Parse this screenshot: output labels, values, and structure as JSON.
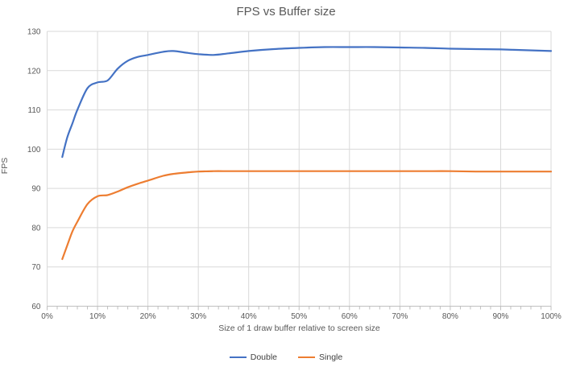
{
  "chart": {
    "title": "FPS vs Buffer size",
    "colors": {
      "double": "#4472C4",
      "single": "#ED7D31",
      "gridline": "#D9D9D9",
      "axis_line": "#BFBFBF",
      "text": "#595959"
    }
  },
  "chart_data": {
    "type": "line",
    "title": "FPS vs Buffer size",
    "xlabel": "Size of 1 draw buffer relative to screen size",
    "ylabel": "FPS",
    "xlim": [
      0,
      100
    ],
    "ylim": [
      60,
      130
    ],
    "grid": true,
    "legend_position": "bottom",
    "x_tick_labels": [
      "0%",
      "10%",
      "20%",
      "30%",
      "40%",
      "50%",
      "60%",
      "70%",
      "80%",
      "90%",
      "100%"
    ],
    "x_ticks": [
      0,
      10,
      20,
      30,
      40,
      50,
      60,
      70,
      80,
      90,
      100
    ],
    "x_minor_tick_step": 2,
    "y_ticks": [
      60,
      70,
      80,
      90,
      100,
      110,
      120,
      130
    ],
    "x": [
      3,
      4,
      5,
      6,
      8,
      10,
      12,
      14,
      16,
      18,
      20,
      23,
      25,
      28,
      30,
      33,
      36,
      40,
      45,
      50,
      55,
      60,
      65,
      70,
      75,
      80,
      85,
      90,
      95,
      100
    ],
    "series": [
      {
        "name": "Double",
        "color": "#4472C4",
        "values": [
          98,
          103,
          106.5,
          110,
          115.5,
          117,
          117.5,
          120.5,
          122.5,
          123.5,
          124,
          124.8,
          125,
          124.5,
          124.2,
          124,
          124.4,
          125,
          125.5,
          125.8,
          126,
          126,
          126,
          125.9,
          125.8,
          125.6,
          125.5,
          125.4,
          125.2,
          125
        ]
      },
      {
        "name": "Single",
        "color": "#ED7D31",
        "values": [
          72,
          75.5,
          79,
          81.5,
          86,
          88,
          88.3,
          89.2,
          90.3,
          91.2,
          92,
          93.2,
          93.7,
          94.1,
          94.3,
          94.4,
          94.4,
          94.4,
          94.4,
          94.4,
          94.4,
          94.4,
          94.4,
          94.4,
          94.4,
          94.4,
          94.3,
          94.3,
          94.3,
          94.3
        ]
      }
    ]
  }
}
